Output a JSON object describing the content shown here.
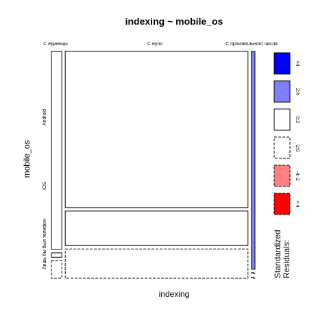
{
  "chart_data": {
    "type": "mosaic",
    "title": "indexing ~ mobile_os",
    "xlabel": "indexing",
    "ylabel": "mobile_os",
    "x_categories": [
      "С единицы",
      "С нуля",
      "С произвольного числа"
    ],
    "y_categories": [
      "Android",
      "iOS",
      "Лишь бы был телефон"
    ],
    "x_proportions": [
      0.053,
      0.929,
      0.018
    ],
    "y_proportions_within_x": [
      [
        0.9,
        0.02,
        0.08
      ],
      [
        0.71,
        0.157,
        0.133
      ],
      [
        0.99,
        0.005,
        0.005
      ]
    ],
    "residual_classes": [
      [
        "0:2",
        "<-2:0",
        "-2:0"
      ],
      [
        "0:2",
        "0:2",
        "-2:0"
      ],
      [
        "2:4",
        "-2:0",
        "-2:0"
      ]
    ],
    "legend": {
      "title_line1": "Standardized",
      "title_line2": "Residuals:",
      "entries": [
        {
          "label": ">4",
          "fill": "#0000ff",
          "dashed": false
        },
        {
          "label": "2:4",
          "fill": "#8080ff",
          "dashed": false
        },
        {
          "label": "0:2",
          "fill": "#ffffff",
          "dashed": false
        },
        {
          "label": "-2:0",
          "fill": "#ffffff",
          "dashed": true
        },
        {
          "label": "-4:-2",
          "fill": "#ff8080",
          "dashed": true
        },
        {
          "label": "<-4",
          "fill": "#ff0000",
          "dashed": true
        }
      ]
    }
  }
}
